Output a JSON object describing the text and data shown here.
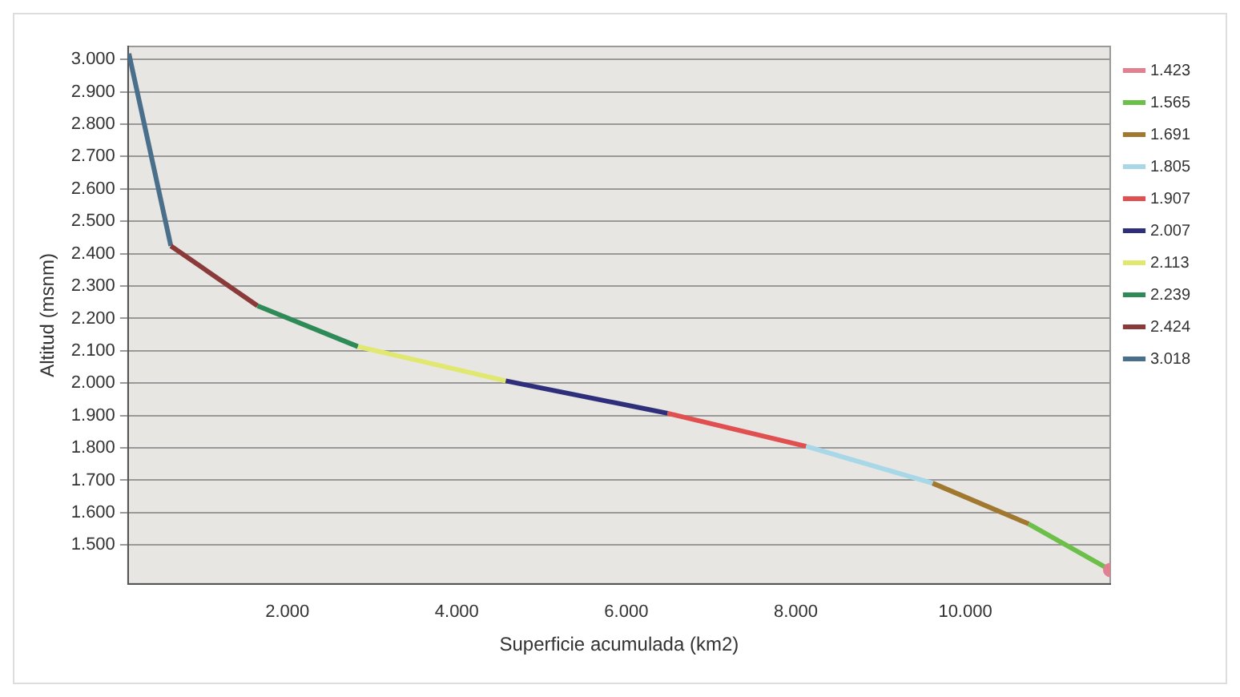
{
  "chart_data": {
    "type": "line",
    "xlabel": "Superficie acumulada (km2)",
    "ylabel": "Altitud (msnm)",
    "xlim": [
      120,
      11710
    ],
    "ylim": [
      1380,
      3040
    ],
    "xticks": [
      {
        "value": 2000,
        "label": "2.000"
      },
      {
        "value": 4000,
        "label": "4.000"
      },
      {
        "value": 6000,
        "label": "6.000"
      },
      {
        "value": 8000,
        "label": "8.000"
      },
      {
        "value": 10000,
        "label": "10.000"
      }
    ],
    "yticks": [
      {
        "value": 1500,
        "label": "1.500"
      },
      {
        "value": 1600,
        "label": "1.600"
      },
      {
        "value": 1700,
        "label": "1.700"
      },
      {
        "value": 1800,
        "label": "1.800"
      },
      {
        "value": 1900,
        "label": "1.900"
      },
      {
        "value": 2000,
        "label": "2.000"
      },
      {
        "value": 2100,
        "label": "2.100"
      },
      {
        "value": 2200,
        "label": "2.200"
      },
      {
        "value": 2300,
        "label": "2.300"
      },
      {
        "value": 2400,
        "label": "2.400"
      },
      {
        "value": 2500,
        "label": "2.500"
      },
      {
        "value": 2600,
        "label": "2.600"
      },
      {
        "value": 2700,
        "label": "2.700"
      },
      {
        "value": 2800,
        "label": "2.800"
      },
      {
        "value": 2900,
        "label": "2.900"
      },
      {
        "value": 3000,
        "label": "3.000"
      }
    ],
    "grid": "y",
    "legend": "right",
    "marker": "none",
    "line_style": "solid",
    "series": [
      {
        "name": "1.423",
        "color": "#e08090",
        "x": [
          11710
        ],
        "values": [
          1423
        ],
        "marker": "circle"
      },
      {
        "name": "1.565",
        "color": "#6cc04a",
        "x": [
          10750,
          11710
        ],
        "values": [
          1565,
          1423
        ]
      },
      {
        "name": "1.691",
        "color": "#a07830",
        "x": [
          9615,
          10750
        ],
        "values": [
          1691,
          1565
        ]
      },
      {
        "name": "1.805",
        "color": "#a8d8e8",
        "x": [
          8122,
          9615
        ],
        "values": [
          1805,
          1691
        ]
      },
      {
        "name": "1.907",
        "color": "#e05050",
        "x": [
          6487,
          8122
        ],
        "values": [
          1907,
          1805
        ]
      },
      {
        "name": "2.007",
        "color": "#2e2e7a",
        "x": [
          4577,
          6487
        ],
        "values": [
          2007,
          1907
        ]
      },
      {
        "name": "2.113",
        "color": "#e0e870",
        "x": [
          2833,
          4577
        ],
        "values": [
          2113,
          2007
        ]
      },
      {
        "name": "2.239",
        "color": "#2e8b57",
        "x": [
          1648,
          2833
        ],
        "values": [
          2239,
          2113
        ]
      },
      {
        "name": "2.424",
        "color": "#8b3a3a",
        "x": [
          625,
          1648
        ],
        "values": [
          2424,
          2239
        ]
      },
      {
        "name": "3.018",
        "color": "#4a6f8a",
        "x": [
          130,
          625
        ],
        "values": [
          3018,
          2424
        ]
      }
    ]
  }
}
